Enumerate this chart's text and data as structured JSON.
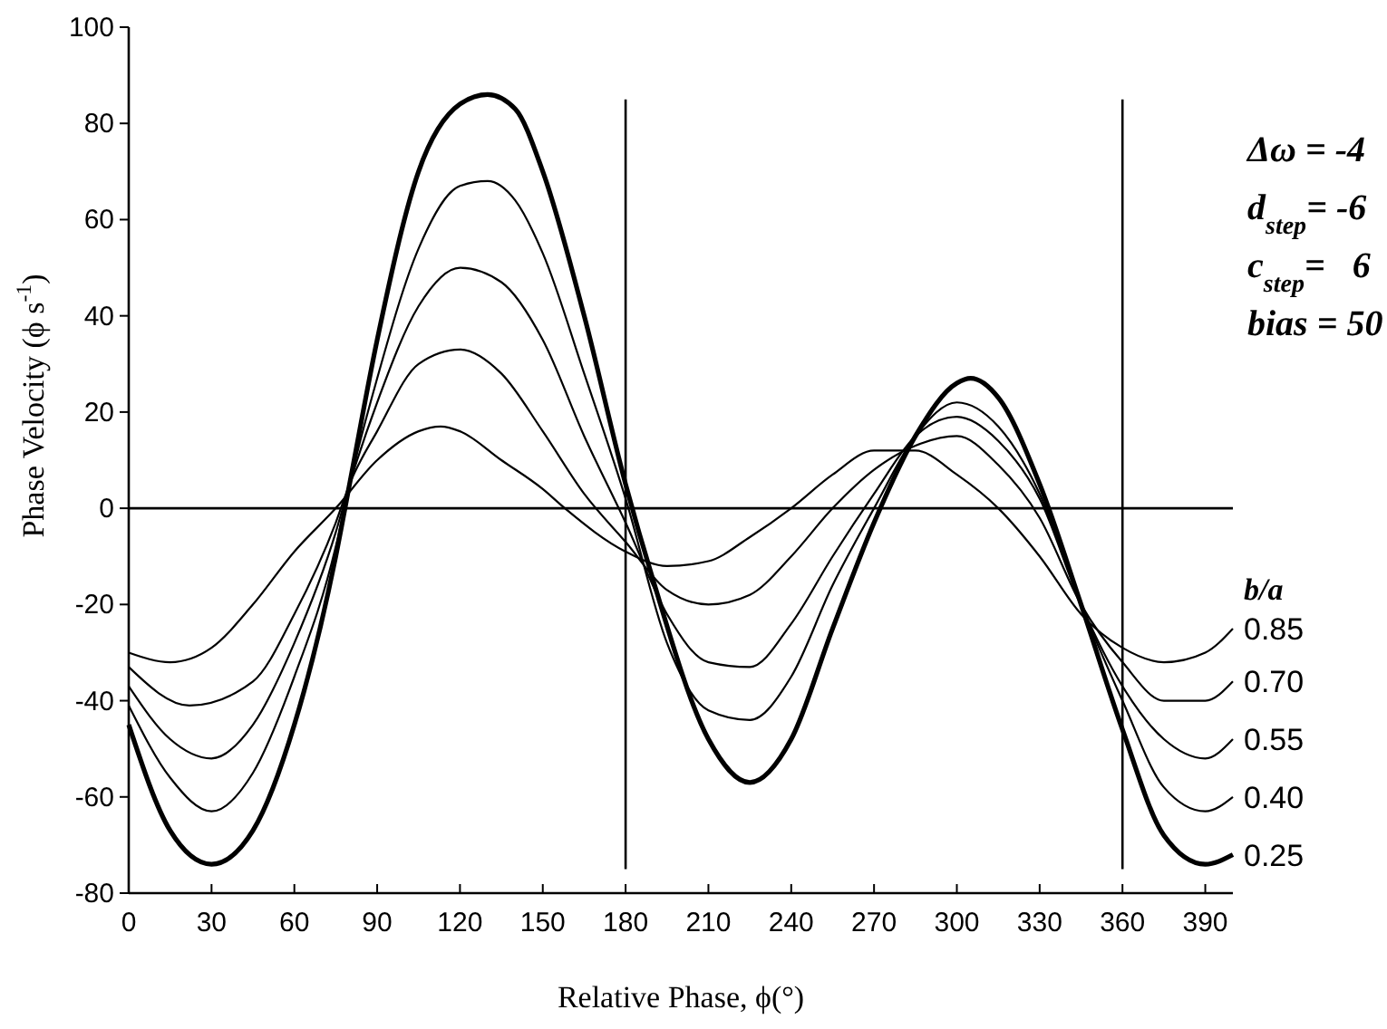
{
  "chart_data": {
    "type": "line",
    "xlabel": "Relative Phase, ϕ(°)",
    "ylabel": "Phase Velocity (ϕ s$^{-1}$)",
    "legend_title": "b/a",
    "xlim": [
      0,
      400
    ],
    "ylim": [
      -80,
      100
    ],
    "xticks": [
      0,
      30,
      60,
      90,
      120,
      150,
      180,
      210,
      240,
      270,
      300,
      330,
      360,
      390
    ],
    "yticks": [
      -80,
      -60,
      -40,
      -20,
      0,
      20,
      40,
      60,
      80,
      100
    ],
    "grid": false,
    "marker": "none",
    "line_style": "solid",
    "ref_lines": [
      {
        "axis": "y",
        "value": 0,
        "color": "#000000"
      },
      {
        "axis": "x",
        "value": 180,
        "color": "#000000"
      },
      {
        "axis": "x",
        "value": 360,
        "color": "#000000"
      }
    ],
    "annotations": [
      "Δω = -4",
      "d$_{step}$= -6",
      "c$_{step}$=   6",
      "bias = 50"
    ],
    "series": [
      {
        "name": "0.85",
        "color": "#000000",
        "x": [
          0,
          15,
          30,
          45,
          60,
          75,
          90,
          105,
          113,
          120,
          135,
          150,
          158,
          180,
          195,
          210,
          225,
          240,
          255,
          270,
          285,
          300,
          315,
          330,
          345,
          360,
          375,
          390,
          400
        ],
        "values": [
          -30,
          -32,
          -29,
          -20,
          -9,
          0,
          10,
          16,
          17,
          16,
          10,
          4,
          0,
          -9,
          -12,
          -11,
          -6,
          0,
          7,
          12,
          12,
          7,
          0,
          -10,
          -22,
          -29,
          -32,
          -30,
          -25
        ]
      },
      {
        "name": "0.70",
        "color": "#000000",
        "x": [
          0,
          22,
          45,
          60,
          75,
          80,
          90,
          105,
          120,
          135,
          150,
          165,
          180,
          195,
          210,
          225,
          240,
          255,
          270,
          285,
          300,
          315,
          330,
          345,
          360,
          375,
          390,
          400
        ],
        "values": [
          -33,
          -41,
          -36,
          -22,
          -3,
          5,
          16,
          30,
          33,
          28,
          16,
          3,
          -7,
          -17,
          -20,
          -18,
          -10,
          0,
          8,
          13,
          15,
          9,
          -2,
          -20,
          -32,
          -40,
          -40,
          -36
        ]
      },
      {
        "name": "0.55",
        "color": "#000000",
        "x": [
          0,
          15,
          30,
          45,
          60,
          75,
          80,
          90,
          105,
          120,
          135,
          150,
          165,
          180,
          195,
          210,
          225,
          240,
          255,
          270,
          285,
          300,
          315,
          330,
          345,
          360,
          375,
          390,
          400
        ],
        "values": [
          -37,
          -48,
          -52,
          -45,
          -28,
          -5,
          5,
          22,
          42,
          50,
          47,
          35,
          15,
          -3,
          -22,
          -32,
          -33,
          -24,
          -10,
          3,
          15,
          19,
          14,
          2,
          -20,
          -37,
          -48,
          -52,
          -48
        ]
      },
      {
        "name": "0.40",
        "color": "#000000",
        "x": [
          0,
          15,
          30,
          45,
          60,
          75,
          80,
          90,
          105,
          120,
          130,
          140,
          150,
          165,
          180,
          195,
          210,
          225,
          240,
          255,
          270,
          285,
          300,
          315,
          330,
          345,
          360,
          375,
          390,
          400
        ],
        "values": [
          -41,
          -56,
          -63,
          -55,
          -35,
          -8,
          5,
          27,
          54,
          67,
          68,
          64,
          53,
          28,
          2,
          -28,
          -42,
          -44,
          -35,
          -16,
          0,
          15,
          22,
          17,
          3,
          -20,
          -40,
          -58,
          -63,
          -60
        ]
      },
      {
        "name": "0.25",
        "color": "#000000",
        "x": [
          0,
          15,
          30,
          45,
          60,
          75,
          80,
          90,
          105,
          120,
          130,
          140,
          150,
          165,
          180,
          190,
          210,
          225,
          240,
          255,
          270,
          285,
          300,
          305,
          315,
          330,
          345,
          360,
          375,
          390,
          400
        ],
        "values": [
          -45,
          -67,
          -74,
          -67,
          -45,
          -10,
          5,
          35,
          70,
          84,
          86,
          83,
          70,
          40,
          5,
          -15,
          -48,
          -57,
          -48,
          -25,
          -3,
          15,
          26,
          27,
          23,
          5,
          -20,
          -46,
          -68,
          -74,
          -72
        ]
      }
    ]
  }
}
